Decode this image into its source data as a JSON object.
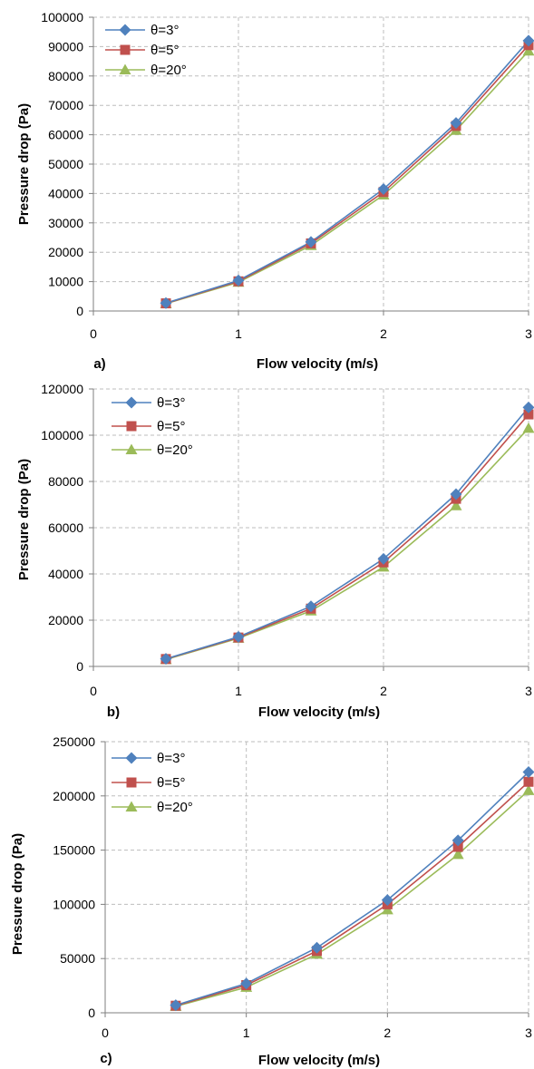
{
  "chart_data": [
    {
      "type": "line",
      "panel_label": "a)",
      "xlabel": "Flow velocity (m/s)",
      "ylabel": "Pressure drop (Pa)",
      "xlim": [
        0,
        3
      ],
      "ylim": [
        0,
        100000
      ],
      "xticks": [
        "0",
        "1",
        "2",
        "3"
      ],
      "yticks": [
        "0",
        "10000",
        "20000",
        "30000",
        "40000",
        "50000",
        "60000",
        "70000",
        "80000",
        "90000",
        "100000"
      ],
      "grid": true,
      "legend_position": "top-left",
      "x": [
        0.5,
        1,
        1.5,
        2,
        2.5,
        3
      ],
      "series": [
        {
          "name": "θ=3°",
          "marker": "diamond",
          "color": "#4F81BD",
          "values": [
            2700,
            10400,
            23500,
            41500,
            64000,
            92000
          ]
        },
        {
          "name": "θ=5°",
          "marker": "square",
          "color": "#C0504D",
          "values": [
            2600,
            10100,
            23000,
            40500,
            63000,
            90500
          ]
        },
        {
          "name": "θ=20°",
          "marker": "triangle",
          "color": "#9BBB59",
          "values": [
            2500,
            9800,
            22300,
            39500,
            61500,
            88500
          ]
        }
      ]
    },
    {
      "type": "line",
      "panel_label": "b)",
      "xlabel": "Flow velocity (m/s)",
      "ylabel": "Pressure drop (Pa)",
      "xlim": [
        0,
        3
      ],
      "ylim": [
        0,
        120000
      ],
      "xticks": [
        "0",
        "1",
        "2",
        "3"
      ],
      "yticks": [
        "0",
        "20000",
        "40000",
        "60000",
        "80000",
        "100000",
        "120000"
      ],
      "grid": true,
      "legend_position": "top-left",
      "x": [
        0.5,
        1,
        1.5,
        2,
        2.5,
        3
      ],
      "series": [
        {
          "name": "θ=3°",
          "marker": "diamond",
          "color": "#4F81BD",
          "values": [
            3300,
            12800,
            26000,
            46500,
            74500,
            112000
          ]
        },
        {
          "name": "θ=5°",
          "marker": "square",
          "color": "#C0504D",
          "values": [
            3200,
            12500,
            25000,
            45000,
            72500,
            109000
          ]
        },
        {
          "name": "θ=20°",
          "marker": "triangle",
          "color": "#9BBB59",
          "values": [
            3000,
            12200,
            24000,
            43000,
            69500,
            103000
          ]
        }
      ]
    },
    {
      "type": "line",
      "panel_label": "c)",
      "xlabel": "Flow velocity (m/s)",
      "ylabel": "Pressure drop (Pa)",
      "xlim": [
        0,
        3
      ],
      "ylim": [
        0,
        250000
      ],
      "xticks": [
        "0",
        "1",
        "2",
        "3"
      ],
      "yticks": [
        "0",
        "50000",
        "100000",
        "150000",
        "200000",
        "250000"
      ],
      "grid": true,
      "legend_position": "top-left",
      "x": [
        0.5,
        1,
        1.5,
        2,
        2.5,
        3
      ],
      "series": [
        {
          "name": "θ=3°",
          "marker": "diamond",
          "color": "#4F81BD",
          "values": [
            7000,
            27000,
            60000,
            104000,
            159000,
            222000
          ]
        },
        {
          "name": "θ=5°",
          "marker": "square",
          "color": "#C0504D",
          "values": [
            6500,
            25500,
            57000,
            100000,
            153000,
            213000
          ]
        },
        {
          "name": "θ=20°",
          "marker": "triangle",
          "color": "#9BBB59",
          "values": [
            6000,
            23500,
            54000,
            95000,
            146000,
            205000
          ]
        }
      ]
    }
  ]
}
